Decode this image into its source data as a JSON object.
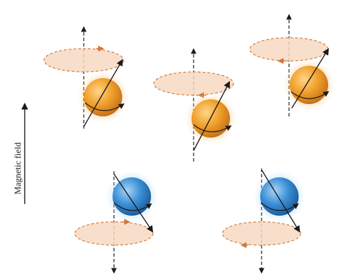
{
  "axis": {
    "label": "Magnetic field"
  },
  "colors": {
    "orange_sphere": "#f0a02a",
    "blue_sphere": "#3b8fd6",
    "ellipse_fill": "#f7d9c2",
    "ellipse_stroke": "#d07a3a",
    "arrow": "#1a1a1a"
  },
  "spins": [
    {
      "id": "spin-up-1",
      "state": "up",
      "sphere": "orange"
    },
    {
      "id": "spin-up-2",
      "state": "up",
      "sphere": "orange"
    },
    {
      "id": "spin-up-3",
      "state": "up",
      "sphere": "orange"
    },
    {
      "id": "spin-down-1",
      "state": "down",
      "sphere": "blue"
    },
    {
      "id": "spin-down-2",
      "state": "down",
      "sphere": "blue"
    }
  ]
}
